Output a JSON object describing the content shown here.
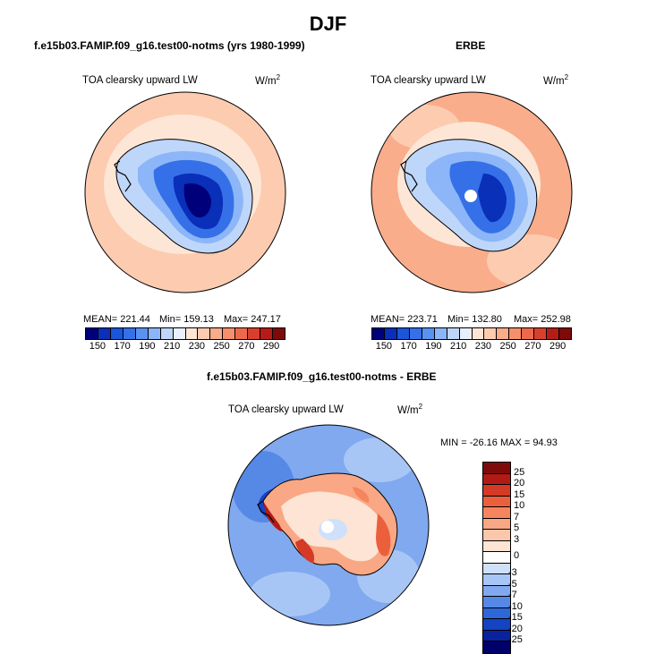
{
  "title": "DJF",
  "panels": {
    "model": {
      "title": "f.e15b03.FAMIP.f09_g16.test00-notms (yrs 1980-1999)",
      "field": "TOA clearsky upward LW",
      "units_base": "W/m",
      "units_exp": "2",
      "mean_label": "MEAN= 221.44",
      "min_label": "Min= 159.13",
      "max_label": "Max= 247.17"
    },
    "obs": {
      "title": "ERBE",
      "field": "TOA clearsky upward LW",
      "units_base": "W/m",
      "units_exp": "2",
      "mean_label": "MEAN= 223.71",
      "min_label": "Min= 132.80",
      "max_label": "Max= 252.98"
    },
    "diff": {
      "title": "f.e15b03.FAMIP.f09_g16.test00-notms - ERBE",
      "field": "TOA clearsky upward LW",
      "units_base": "W/m",
      "units_exp": "2",
      "minmax_label": "MIN = -26.16 MAX =  94.93"
    }
  },
  "colorbar_abs": {
    "ticks": [
      "150",
      "170",
      "190",
      "210",
      "230",
      "250",
      "270",
      "290"
    ],
    "colors": [
      "#00007a",
      "#0a2fb8",
      "#1c55d8",
      "#3570e8",
      "#5a92f2",
      "#8cb6f7",
      "#bed6fa",
      "#e8f0fc",
      "#fde6d6",
      "#fccbb0",
      "#f9ad8b",
      "#f58f6c",
      "#ec6a4b",
      "#d8402d",
      "#b61c17",
      "#7e0a0a"
    ]
  },
  "colorbar_diff": {
    "ticks": [
      "25",
      "20",
      "15",
      "10",
      "7",
      "5",
      "3",
      "0",
      "-3",
      "-5",
      "-7",
      "-10",
      "-15",
      "-20",
      "-25"
    ],
    "colors": [
      "#7e0a0a",
      "#b31a14",
      "#d43a26",
      "#ec5f3c",
      "#f6855f",
      "#f9a784",
      "#fbc6aa",
      "#fde4d4",
      "#ffffff",
      "#cfe0fa",
      "#a8c6f5",
      "#80a9ef",
      "#5689e6",
      "#2e67da",
      "#1443c4",
      "#0a22a0",
      "#00006a"
    ]
  }
}
